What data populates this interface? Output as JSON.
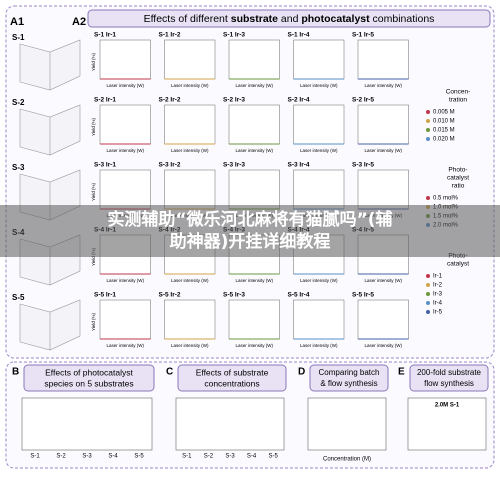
{
  "figure": {
    "a1_label": "A1",
    "a2_label": "A2",
    "title_parts": [
      "Effects of different ",
      "substrate",
      " and ",
      "photocatalyst",
      " combinations"
    ],
    "a1_rows": [
      "S-1",
      "S-2",
      "S-3",
      "S-4",
      "S-5"
    ],
    "cells": [
      [
        "S-1 Ir-1",
        "S-1 Ir-2",
        "S-1 Ir-3",
        "S-1 Ir-4",
        "S-1 Ir-5"
      ],
      [
        "S-2 Ir-1",
        "S-2 Ir-2",
        "S-2 Ir-3",
        "S-2 Ir-4",
        "S-2 Ir-5"
      ],
      [
        "S-3 Ir-1",
        "S-3 Ir-2",
        "S-3 Ir-3",
        "S-3 Ir-4",
        "S-3 Ir-5"
      ],
      [
        "S-4 Ir-1",
        "S-4 Ir-2",
        "S-4 Ir-3",
        "S-4 Ir-4",
        "S-4 Ir-5"
      ],
      [
        "S-5 Ir-1",
        "S-5 Ir-2",
        "S-5 Ir-3",
        "S-5 Ir-4",
        "S-5 Ir-5"
      ]
    ],
    "x_axis_label": "Laser intensity (W)",
    "y_axis_label": "Yield (%)",
    "legends": [
      {
        "title": [
          "Concen-",
          "tration"
        ],
        "items": [
          "0.005 M",
          "0.010 M",
          "0.015 M",
          "0.020 M"
        ]
      },
      {
        "title": [
          "Photo-",
          "catalyst",
          "ratio"
        ],
        "items": [
          "0.5 mol%",
          "1.0 mol%",
          "1.5 mol%",
          "2.0 mol%"
        ]
      },
      {
        "title": [
          "Photo-",
          "catalyst"
        ],
        "items": [
          "Ir-1",
          "Ir-2",
          "Ir-3",
          "Ir-4",
          "Ir-5"
        ]
      }
    ],
    "bottom": [
      {
        "label": "B",
        "title": [
          "Effects of photocatalyst",
          "species on 5 substrates"
        ],
        "ticks": [
          "S-1",
          "S-2",
          "S-3",
          "S-4",
          "S-5"
        ]
      },
      {
        "label": "C",
        "title": [
          "Effects of substrate",
          "concentrations"
        ],
        "ticks": [
          "S-1",
          "S-2",
          "S-3",
          "S-4",
          "S-5"
        ]
      },
      {
        "label": "D",
        "title": [
          "Comparing batch",
          "& flow synthesis"
        ],
        "ticks": [
          "Concentration (M)"
        ]
      },
      {
        "label": "E",
        "title": [
          "200-fold substrate",
          "flow synthesis"
        ],
        "ticks": [
          "2.0M S-1"
        ]
      }
    ],
    "overlay": [
      "实测辅助“微乐河北麻将有猫腻吗”(辅",
      "助神器)开挂详细教程"
    ]
  }
}
